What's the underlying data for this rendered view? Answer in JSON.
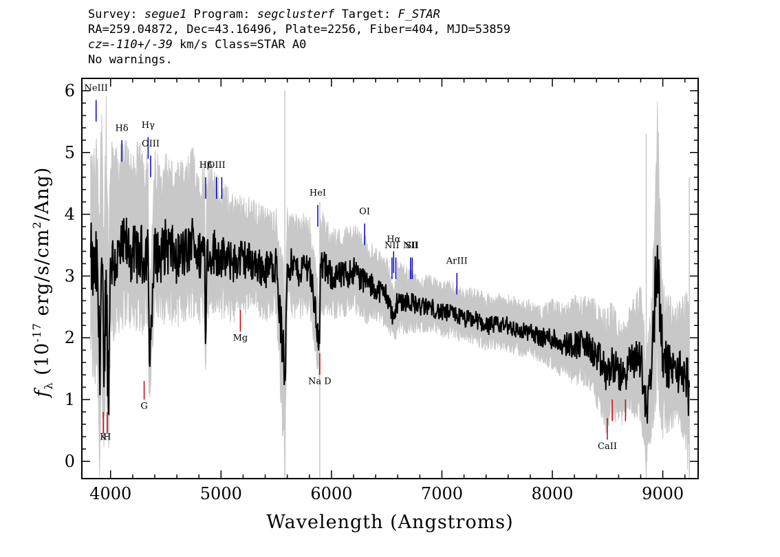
{
  "header": {
    "line1": {
      "survey_label": "Survey:",
      "survey": "segue1",
      "program_label": "Program:",
      "program": "segclusterf",
      "target_label": "Target:",
      "target": "F_STAR"
    },
    "line2": "RA=259.04872, Dec=43.16496, Plate=2256, Fiber=404, MJD=53859",
    "line3": {
      "cz": "cz=-110+/-39",
      "rest": "km/s Class=STAR A0"
    },
    "line4": "No warnings."
  },
  "chart_data": {
    "type": "line",
    "xlabel": "Wavelength (Angstroms)",
    "ylabel": "f_λ (10^-17 erg/s/cm^2/Ang)",
    "xlim": [
      3740,
      9320
    ],
    "ylim": [
      -0.28,
      6.2
    ],
    "x_ticks": [
      4000,
      5000,
      6000,
      7000,
      8000,
      9000
    ],
    "y_ticks": [
      0,
      1,
      2,
      3,
      4,
      5,
      6
    ],
    "grid": false,
    "colors": {
      "flux": "#000000",
      "error_band": "#c8c8c8",
      "emission_line": "#0000cc",
      "absorption_line": "#cc0000"
    },
    "series": [
      {
        "x": [
          3820,
          3850,
          3880,
          3900,
          3920,
          3940,
          3960,
          3980,
          4000,
          4050,
          4100,
          4150,
          4200,
          4250,
          4300,
          4340,
          4350,
          4400,
          4450,
          4500,
          4600,
          4700,
          4750,
          4800,
          4850,
          4861,
          4870,
          4900,
          4950,
          5000,
          5100,
          5200,
          5300,
          5400,
          5500,
          5578,
          5600,
          5700,
          5800,
          5890,
          5895,
          5900,
          6000,
          6100,
          6200,
          6300,
          6400,
          6500,
          6563,
          6600,
          6700,
          6800,
          6900,
          7000,
          7100,
          7200,
          7300,
          7400,
          7500,
          7600,
          7700,
          7800,
          7900,
          8000,
          8100,
          8200,
          8300,
          8400,
          8498,
          8542,
          8600,
          8662,
          8700,
          8800,
          8850,
          8900,
          8950,
          9000,
          9100,
          9200,
          9240
        ],
        "y": [
          3.3,
          2.9,
          3.2,
          1.5,
          3.3,
          1.2,
          3.1,
          0.9,
          3.3,
          3.2,
          3.4,
          3.5,
          3.3,
          3.4,
          3.3,
          3.5,
          1.6,
          3.4,
          3.3,
          3.5,
          3.3,
          3.4,
          3.6,
          3.3,
          3.5,
          1.9,
          3.4,
          3.4,
          3.4,
          3.3,
          3.2,
          3.3,
          3.2,
          3.1,
          3.2,
          1.3,
          3.2,
          3.1,
          3.2,
          1.9,
          2.5,
          3.2,
          3.0,
          3.0,
          3.1,
          2.9,
          2.8,
          2.7,
          2.3,
          2.6,
          2.6,
          2.5,
          2.5,
          2.4,
          2.4,
          2.3,
          2.3,
          2.2,
          2.2,
          2.2,
          2.1,
          2.1,
          2.0,
          2.0,
          1.9,
          1.9,
          1.9,
          1.7,
          1.4,
          1.6,
          1.4,
          1.4,
          1.6,
          1.7,
          0.8,
          1.5,
          3.5,
          1.6,
          1.5,
          1.4,
          1.2
        ]
      }
    ],
    "error_band": {
      "y_low": [
        2.0,
        1.5,
        1.8,
        0.2,
        1.8,
        0.0,
        1.6,
        0.0,
        2.3,
        2.4,
        2.5,
        2.6,
        2.4,
        2.5,
        2.4,
        2.6,
        1.0,
        2.6,
        2.5,
        2.6,
        2.5,
        2.6,
        2.7,
        2.5,
        2.6,
        1.5,
        2.6,
        2.6,
        2.6,
        2.6,
        2.5,
        2.6,
        2.6,
        2.5,
        2.6,
        0.0,
        2.6,
        2.5,
        2.6,
        1.4,
        2.0,
        2.6,
        2.5,
        2.5,
        2.6,
        2.4,
        2.4,
        2.3,
        2.0,
        2.2,
        2.2,
        2.2,
        2.2,
        2.1,
        2.1,
        2.0,
        2.0,
        1.9,
        1.9,
        1.9,
        1.8,
        1.8,
        1.7,
        1.6,
        1.5,
        1.4,
        1.4,
        1.1,
        0.6,
        0.9,
        0.8,
        0.8,
        1.0,
        0.9,
        0.0,
        0.6,
        1.6,
        0.7,
        0.8,
        0.6,
        0.0
      ],
      "y_high": [
        4.8,
        4.6,
        4.9,
        3.8,
        5.6,
        3.5,
        5.5,
        3.0,
        4.8,
        4.7,
        4.8,
        4.9,
        4.7,
        4.8,
        4.7,
        4.9,
        2.4,
        4.7,
        4.6,
        4.7,
        4.5,
        4.6,
        4.8,
        4.5,
        4.6,
        2.5,
        4.5,
        4.5,
        4.4,
        4.3,
        4.1,
        4.1,
        4.0,
        3.9,
        3.9,
        2.6,
        3.9,
        3.8,
        3.8,
        2.6,
        3.1,
        3.9,
        3.6,
        3.6,
        3.7,
        3.5,
        3.3,
        3.2,
        2.7,
        3.1,
        3.0,
        2.9,
        2.9,
        2.8,
        2.8,
        2.7,
        2.7,
        2.6,
        2.6,
        2.6,
        2.5,
        2.5,
        2.4,
        2.5,
        2.4,
        2.5,
        2.5,
        2.4,
        2.2,
        2.4,
        2.1,
        2.1,
        2.3,
        2.6,
        1.6,
        2.5,
        5.4,
        2.6,
        2.3,
        2.4,
        2.5
      ]
    },
    "emission_lines": [
      {
        "label": "NeIII",
        "x": 3869,
        "y1": 5.5,
        "y2": 5.85,
        "label_y": 6.0
      },
      {
        "label": "Hδ",
        "x": 4102,
        "y1": 4.85,
        "y2": 5.2,
        "label_y": 5.35
      },
      {
        "label": "Hγ",
        "x": 4340,
        "y1": 4.9,
        "y2": 5.25,
        "label_y": 5.4
      },
      {
        "label": "OIII",
        "x": 4363,
        "y1": 4.6,
        "y2": 4.95,
        "label_y": 5.1
      },
      {
        "label": "Hβ",
        "x": 4861,
        "y1": 4.25,
        "y2": 4.6,
        "label_y": 4.75
      },
      {
        "label": "OIII",
        "x": 4959,
        "y1": 4.25,
        "y2": 4.6,
        "label_y": 4.75
      },
      {
        "label": "",
        "x": 5007,
        "y1": 4.25,
        "y2": 4.6
      },
      {
        "label": "HeI",
        "x": 5876,
        "y1": 3.8,
        "y2": 4.15,
        "label_y": 4.3
      },
      {
        "label": "OI",
        "x": 6300,
        "y1": 3.5,
        "y2": 3.85,
        "label_y": 4.0
      },
      {
        "label": "NII",
        "x": 6548,
        "y1": 2.95,
        "y2": 3.3,
        "label_y": 3.45
      },
      {
        "label": "Hα",
        "x": 6563,
        "y1": 3.05,
        "y2": 3.4,
        "label_y": 3.55
      },
      {
        "label": "",
        "x": 6583,
        "y1": 2.95,
        "y2": 3.3
      },
      {
        "label": "NII",
        "x": 6716,
        "y1": 2.95,
        "y2": 3.3,
        "label_y": 3.45
      },
      {
        "label": "SII",
        "x": 6731,
        "y1": 2.95,
        "y2": 3.3,
        "label_y": 3.45
      },
      {
        "label": "ArIII",
        "x": 7136,
        "y1": 2.7,
        "y2": 3.05,
        "label_y": 3.2
      }
    ],
    "absorption_lines": [
      {
        "label": "K",
        "x": 3934,
        "y1": 0.45,
        "y2": 0.8,
        "label_y": 0.35
      },
      {
        "label": "H",
        "x": 3969,
        "y1": 0.45,
        "y2": 0.8,
        "label_y": 0.35
      },
      {
        "label": "G",
        "x": 4304,
        "y1": 1.0,
        "y2": 1.3,
        "label_y": 0.85
      },
      {
        "label": "Mg",
        "x": 5175,
        "y1": 2.1,
        "y2": 2.45,
        "label_y": 1.95
      },
      {
        "label": "Na D",
        "x": 5894,
        "y1": 1.4,
        "y2": 1.75,
        "label_y": 1.25
      },
      {
        "label": "CaII",
        "x": 8498,
        "y1": 0.35,
        "y2": 0.7,
        "label_y": 0.2
      },
      {
        "label": "",
        "x": 8542,
        "y1": 0.65,
        "y2": 1.0
      },
      {
        "label": "",
        "x": 8662,
        "y1": 0.65,
        "y2": 1.0
      }
    ]
  }
}
